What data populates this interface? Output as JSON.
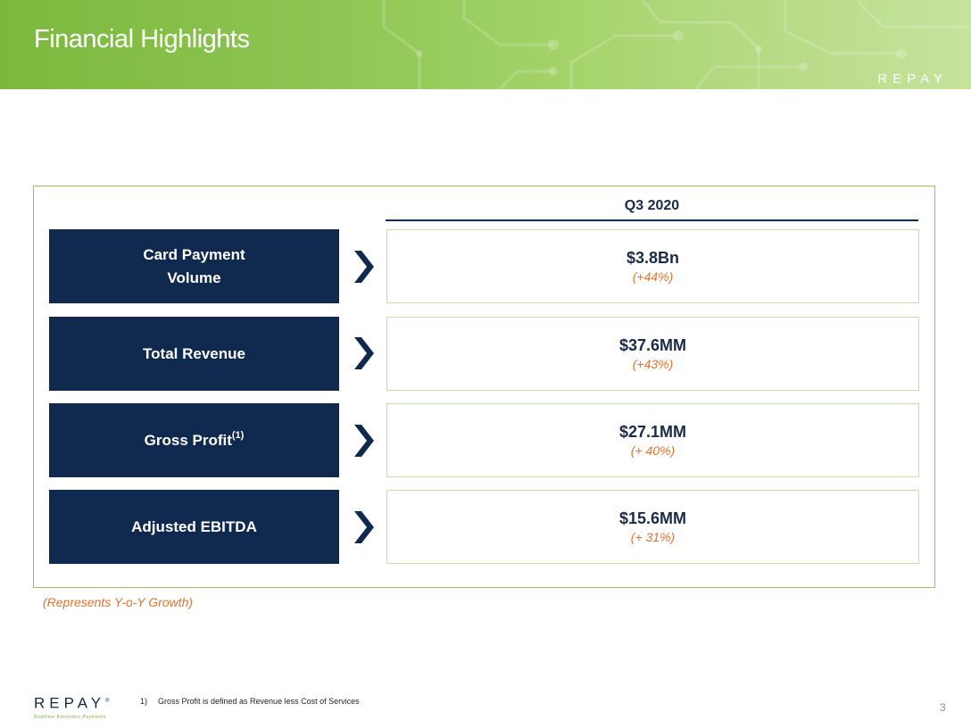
{
  "header": {
    "title": "Financial Highlights",
    "brand": "REPAY",
    "accent_color": "#7cb83e"
  },
  "table": {
    "period": "Q3 2020",
    "rows": [
      {
        "label": "Card Payment Volume",
        "label_sup": "",
        "value": "$3.8Bn",
        "growth": "(+44%)"
      },
      {
        "label": "Total Revenue",
        "label_sup": "",
        "value": "$37.6MM",
        "growth": "(+43%)"
      },
      {
        "label": "Gross Profit",
        "label_sup": "(1)",
        "value": "$27.1MM",
        "growth": "(+ 40%)"
      },
      {
        "label": "Adjusted EBITDA",
        "label_sup": "",
        "value": "$15.6MM",
        "growth": "(+ 31%)"
      }
    ],
    "chevron_icon": "chevron-right-icon",
    "label_bg_color": "#0f2a4e",
    "growth_color": "#e2722c"
  },
  "growth_note": "(Represents Y-o-Y Growth)",
  "footer": {
    "brand": "REPAY",
    "trademark": "®",
    "tagline": "Realtime Electronic Payments",
    "footnote_number": "1)",
    "footnote_text": "Gross Profit is defined as Revenue less Cost of Services",
    "page_number": "3"
  }
}
